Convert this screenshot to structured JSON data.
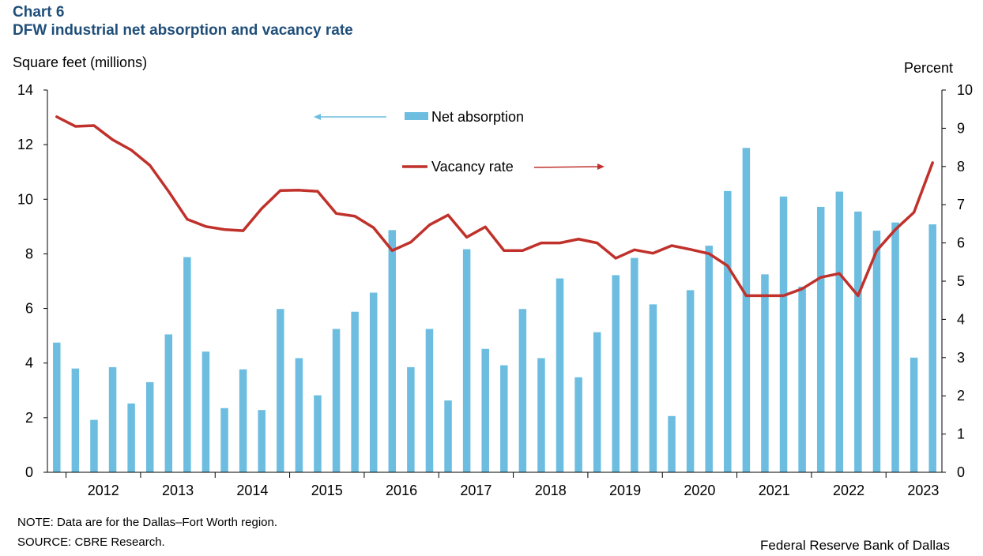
{
  "header": {
    "chart_label": "Chart 6",
    "title": "DFW industrial net absorption and vacancy rate"
  },
  "footer": {
    "note": "NOTE: Data are for the Dallas–Fort Worth region.",
    "source": "SOURCE: CBRE Research.",
    "credit": "Federal Reserve Bank of Dallas"
  },
  "colors": {
    "bars": "#6cbde0",
    "line": "#c0312b",
    "title": "#1f4e79"
  },
  "chart_data": {
    "type": "bar+line",
    "title": "DFW industrial net absorption and vacancy rate",
    "ylabel_left": "Square feet (millions)",
    "ylabel_right": "Percent",
    "ylim_left": [
      0,
      14
    ],
    "yticks_left": [
      0,
      2,
      4,
      6,
      8,
      10,
      12,
      14
    ],
    "ylim_right": [
      0,
      10
    ],
    "yticks_right": [
      0,
      1,
      2,
      3,
      4,
      5,
      6,
      7,
      8,
      9,
      10
    ],
    "years": [
      "2012",
      "2013",
      "2014",
      "2015",
      "2016",
      "2017",
      "2018",
      "2019",
      "2020",
      "2021",
      "2022",
      "2023"
    ],
    "quarters_start": "2011Q4",
    "legend": [
      {
        "label": "Net absorption",
        "series": "bars",
        "axis": "left"
      },
      {
        "label": "Vacancy rate",
        "series": "line",
        "axis": "right"
      }
    ],
    "series": [
      {
        "name": "Net absorption",
        "type": "bar",
        "axis": "left",
        "values": [
          4.75,
          3.8,
          1.92,
          3.85,
          2.52,
          3.3,
          5.05,
          7.88,
          4.42,
          2.35,
          3.77,
          2.28,
          5.98,
          4.18,
          2.82,
          5.25,
          5.88,
          6.58,
          8.87,
          3.85,
          5.25,
          2.63,
          8.17,
          4.52,
          3.92,
          5.98,
          4.18,
          7.1,
          3.48,
          5.13,
          7.22,
          7.85,
          6.15,
          2.06,
          6.67,
          8.3,
          10.3,
          11.88,
          7.25,
          10.1,
          6.8,
          9.72,
          10.28,
          9.55,
          8.85,
          9.15,
          4.2,
          9.08
        ]
      },
      {
        "name": "Vacancy rate",
        "type": "line",
        "axis": "right",
        "values": [
          9.3,
          9.05,
          9.07,
          8.7,
          8.43,
          8.03,
          7.35,
          6.62,
          6.43,
          6.35,
          6.32,
          6.9,
          7.37,
          7.38,
          7.35,
          6.77,
          6.7,
          6.4,
          5.8,
          6.02,
          6.47,
          6.73,
          6.15,
          6.42,
          5.8,
          5.8,
          6.0,
          6.0,
          6.1,
          6.0,
          5.6,
          5.82,
          5.73,
          5.93,
          5.83,
          5.72,
          5.4,
          4.62,
          4.62,
          4.62,
          4.8,
          5.1,
          5.2,
          4.62,
          5.8,
          6.35,
          6.8,
          8.1
        ]
      }
    ]
  }
}
